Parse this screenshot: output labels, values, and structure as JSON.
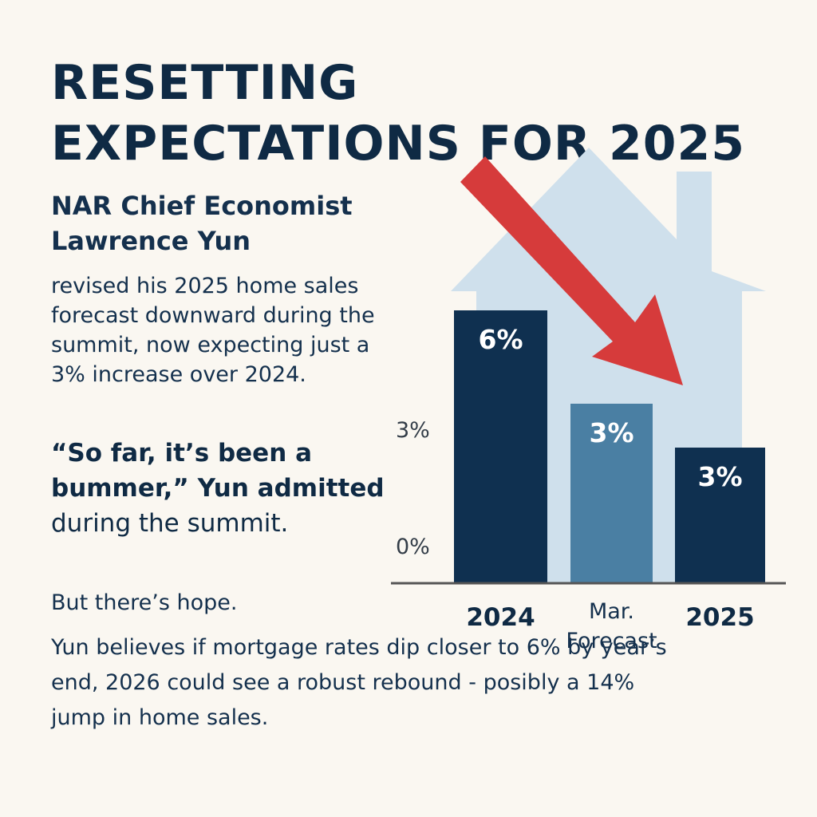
{
  "headline": "RESETTING EXPECTATIONS FOR 2025",
  "subhead": "NAR Chief Economist Lawrence Yun",
  "body": "revised his 2025 home sales forecast downward during the summit, now expecting just a 3% increase over 2024.",
  "quote": {
    "bold": "“So far, it’s been a bummer,” Yun admitted",
    "rest": "during the summit."
  },
  "hope": "But there’s hope.",
  "closing": "Yun believes if mortgage rates dip closer to 6% by year’s end, 2026 could see a robust rebound - posibly a 14% jump in home sales.",
  "colors": {
    "dark_bar": "#0f3050",
    "forecast_bar": "#4a7fa3",
    "house": "#cfe0ec",
    "arrow": "#d63b3b",
    "axis": "#555555"
  },
  "icons": [
    "house-icon",
    "down-arrow-icon"
  ],
  "chart_data": {
    "type": "bar",
    "categories": [
      "2024",
      "Mar. Forecast",
      "2025"
    ],
    "values": [
      6,
      3,
      3
    ],
    "value_labels": [
      "6%",
      "3%",
      "3%"
    ],
    "bar_colors": [
      "#0f3050",
      "#4a7fa3",
      "#0f3050"
    ],
    "category_styles": [
      "bold",
      "normal",
      "bold"
    ],
    "y_ticks": [
      {
        "value": 0,
        "label": "0%"
      },
      {
        "value": 3,
        "label": "3%"
      }
    ],
    "ylim": [
      0,
      6.5
    ],
    "grid": false,
    "legend": "none"
  }
}
